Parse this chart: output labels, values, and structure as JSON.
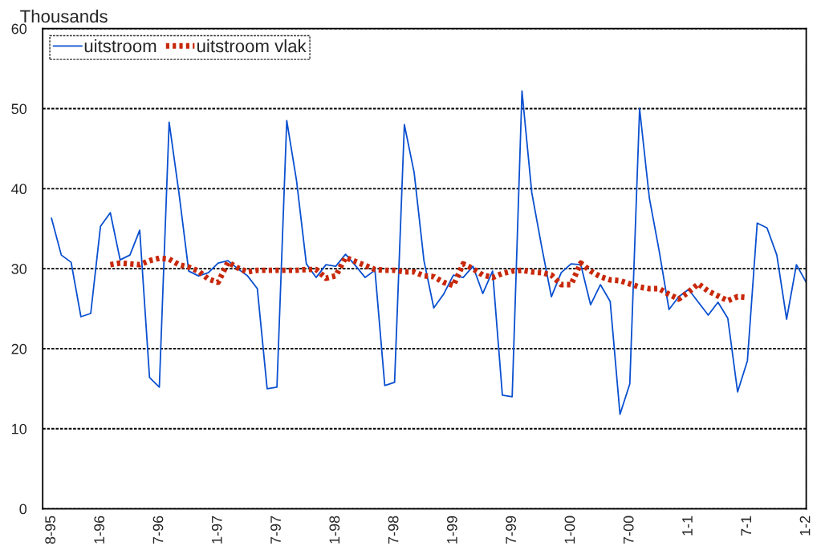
{
  "chart_data": {
    "type": "line",
    "ylabel": "Thousands",
    "categories": [
      "8-95",
      null,
      null,
      null,
      null,
      "1-96",
      null,
      null,
      null,
      null,
      null,
      "7-96",
      null,
      null,
      null,
      null,
      null,
      "1-97",
      null,
      null,
      null,
      null,
      null,
      "7-97",
      null,
      null,
      null,
      null,
      null,
      "1-98",
      null,
      null,
      null,
      null,
      null,
      "7-98",
      null,
      null,
      null,
      null,
      null,
      "1-99",
      null,
      null,
      null,
      null,
      null,
      "7-99",
      null,
      null,
      null,
      null,
      null,
      "1-00",
      null,
      null,
      null,
      null,
      null,
      "7-00",
      null,
      null,
      null,
      null,
      null,
      "1-1",
      null,
      null,
      null,
      null,
      null,
      "7-1",
      null,
      null,
      null,
      null,
      null,
      "1-2"
    ],
    "series": [
      {
        "name": "uitstroom",
        "color": "#0a50d0",
        "line_style": "solid",
        "values": [
          36.3,
          31.7,
          30.8,
          24.0,
          24.4,
          35.3,
          37.0,
          31.1,
          31.7,
          34.8,
          16.4,
          15.2,
          48.3,
          39.5,
          29.7,
          29.1,
          29.5,
          30.7,
          31.0,
          30.0,
          29.1,
          27.5,
          15.0,
          15.2,
          48.5,
          41.0,
          30.6,
          28.9,
          30.5,
          30.3,
          31.8,
          30.4,
          28.9,
          29.8,
          15.4,
          15.8,
          48.0,
          42.0,
          31.0,
          25.1,
          26.8,
          29.2,
          28.9,
          30.3,
          26.9,
          29.7,
          14.2,
          14.0,
          52.2,
          39.5,
          32.8,
          26.5,
          29.5,
          30.6,
          30.5,
          25.5,
          28.0,
          25.9,
          11.8,
          15.6,
          50.0,
          38.8,
          32.2,
          24.9,
          26.5,
          27.4,
          25.8,
          24.2,
          25.8,
          23.8,
          14.6,
          18.5,
          35.7,
          35.1,
          31.7,
          23.7,
          30.5,
          28.3
        ]
      },
      {
        "name": "uitstroom vlak",
        "color": "#c8280a",
        "line_style": "dotted",
        "values": [
          null,
          null,
          null,
          null,
          null,
          null,
          30.5,
          30.7,
          30.6,
          30.5,
          31.0,
          31.3,
          31.2,
          30.5,
          30.2,
          29.7,
          28.7,
          28.3,
          30.8,
          30.1,
          29.6,
          29.8,
          29.8,
          29.8,
          29.8,
          29.8,
          29.9,
          29.9,
          28.8,
          29.1,
          31.4,
          30.9,
          30.4,
          29.9,
          29.8,
          29.8,
          29.6,
          29.6,
          29.1,
          29.0,
          28.3,
          27.9,
          30.6,
          30.0,
          29.2,
          28.9,
          29.4,
          29.7,
          29.8,
          29.6,
          29.5,
          29.2,
          28.0,
          28.0,
          30.7,
          29.7,
          29.0,
          28.6,
          28.5,
          28.1,
          27.7,
          27.5,
          27.5,
          26.8,
          26.2,
          27.1,
          28.1,
          27.2,
          26.6,
          26.0,
          26.5,
          26.4,
          null,
          null,
          null,
          null,
          null,
          null
        ]
      }
    ],
    "ylim": [
      0,
      60
    ],
    "yticks": [
      0,
      10,
      20,
      30,
      40,
      50,
      60
    ],
    "grid": "y",
    "legend": "top left",
    "marker": "none"
  }
}
